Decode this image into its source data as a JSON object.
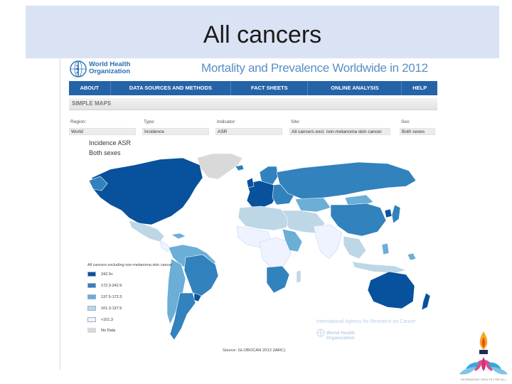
{
  "slide": {
    "title": "All cancers"
  },
  "who": {
    "line1": "World Health",
    "line2": "Organization"
  },
  "site_title": "Mortality and Prevalence Worldwide in 2012",
  "nav": [
    {
      "label": "ABOUT"
    },
    {
      "label": "DATA SOURCES AND METHODS"
    },
    {
      "label": "FACT SHEETS"
    },
    {
      "label": "ONLINE ANALYSIS"
    },
    {
      "label": "HELP"
    }
  ],
  "section": {
    "label": "SIMPLE MAPS"
  },
  "filters": [
    {
      "label": "Region:",
      "value": "World"
    },
    {
      "label": "Type:",
      "value": "Incidence"
    },
    {
      "label": "Indicator:",
      "value": "ASR"
    },
    {
      "label": "Site:",
      "value": "All cancers excl. non-melanoma skin cancer"
    },
    {
      "label": "Sex:",
      "value": "Both sexes"
    }
  ],
  "map": {
    "title": "Incidence ASR",
    "subtitle": "Both sexes",
    "legend_title": "All cancers excluding non-melanoma skin cancer",
    "legend": [
      {
        "label": "242.9+",
        "color": "#08519c"
      },
      {
        "label": "172.3-242.9",
        "color": "#3182bd"
      },
      {
        "label": "137.5-172.3",
        "color": "#6baed6"
      },
      {
        "label": "101.3-137.5",
        "color": "#bdd7e7"
      },
      {
        "label": "<101.3",
        "color": "#eff3ff"
      },
      {
        "label": "No Data",
        "color": "#d9d9d9"
      }
    ]
  },
  "footer": {
    "iarc": "International Agency for Research on Cancer",
    "who_line1": "World Health",
    "who_line2": "Organization",
    "source": "Source: GLOBOCAN 2012 (IARC)"
  },
  "brand": {
    "tagline": "INCREASING HEALTH FOR ALL"
  },
  "colors": {
    "title_bar": "#dae3f3",
    "nav_bar": "#2563a8",
    "darkest": "#08519c",
    "dark": "#3182bd",
    "mid": "#6baed6",
    "light": "#bdd7e7",
    "lightest": "#eff3ff",
    "nodata": "#d9d9d9"
  }
}
